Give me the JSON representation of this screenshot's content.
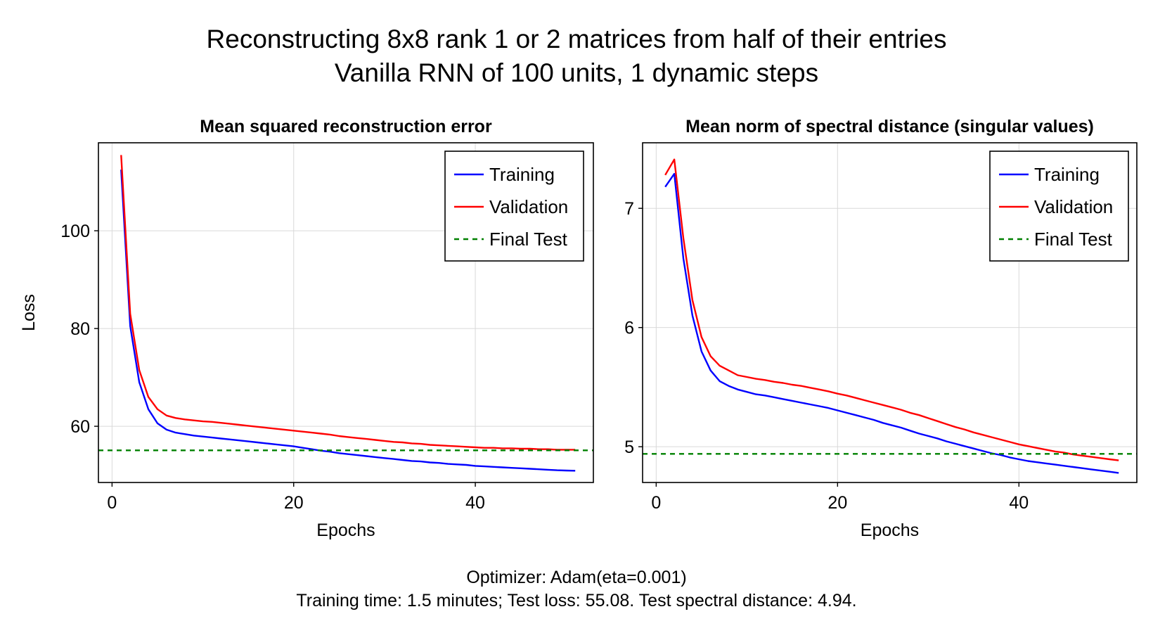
{
  "title_line1": "Reconstructing 8x8 rank 1 or 2 matrices from half of their entries",
  "title_line2": "Vanilla RNN of 100 units, 1 dynamic steps",
  "footer_line1": "Optimizer: Adam(eta=0.001)",
  "footer_line2": "Training time: 1.5 minutes; Test loss: 55.08. Test spectral distance: 4.94.",
  "colors": {
    "training": "#0000ff",
    "validation": "#ff0000",
    "final_test": "#008000",
    "grid": "#d9d9d9"
  },
  "chart_data": [
    {
      "type": "line",
      "title": "Mean squared reconstruction error",
      "xlabel": "Epochs",
      "ylabel": "Loss",
      "xlim": [
        -1.5,
        53
      ],
      "ylim": [
        48.5,
        118
      ],
      "xticks": [
        0,
        20,
        40
      ],
      "yticks": [
        60,
        80,
        100
      ],
      "grid": true,
      "legend_position": "top-right",
      "series": [
        {
          "name": "Training",
          "style": "solid",
          "color": "#0000ff",
          "x": [
            1,
            2,
            3,
            4,
            5,
            6,
            7,
            8,
            9,
            10,
            11,
            12,
            13,
            14,
            15,
            16,
            17,
            18,
            19,
            20,
            21,
            22,
            23,
            24,
            25,
            26,
            27,
            28,
            29,
            30,
            31,
            32,
            33,
            34,
            35,
            36,
            37,
            38,
            39,
            40,
            41,
            42,
            43,
            44,
            45,
            46,
            47,
            48,
            49,
            50,
            51
          ],
          "y": [
            112.5,
            80.5,
            69.0,
            63.5,
            60.6,
            59.3,
            58.7,
            58.4,
            58.1,
            57.9,
            57.7,
            57.5,
            57.3,
            57.1,
            56.9,
            56.7,
            56.5,
            56.3,
            56.1,
            55.9,
            55.6,
            55.3,
            55.0,
            54.8,
            54.5,
            54.3,
            54.1,
            53.9,
            53.7,
            53.5,
            53.3,
            53.1,
            52.9,
            52.8,
            52.6,
            52.5,
            52.3,
            52.2,
            52.1,
            51.9,
            51.8,
            51.7,
            51.6,
            51.5,
            51.4,
            51.3,
            51.2,
            51.1,
            51.0,
            50.95,
            50.9
          ]
        },
        {
          "name": "Validation",
          "style": "solid",
          "color": "#ff0000",
          "x": [
            1,
            2,
            3,
            4,
            5,
            6,
            7,
            8,
            9,
            10,
            11,
            12,
            13,
            14,
            15,
            16,
            17,
            18,
            19,
            20,
            21,
            22,
            23,
            24,
            25,
            26,
            27,
            28,
            29,
            30,
            31,
            32,
            33,
            34,
            35,
            36,
            37,
            38,
            39,
            40,
            41,
            42,
            43,
            44,
            45,
            46,
            47,
            48,
            49,
            50,
            51
          ],
          "y": [
            115.5,
            83.0,
            71.5,
            66.0,
            63.5,
            62.2,
            61.7,
            61.4,
            61.2,
            61.0,
            60.9,
            60.7,
            60.5,
            60.3,
            60.1,
            59.9,
            59.7,
            59.5,
            59.3,
            59.1,
            58.9,
            58.7,
            58.5,
            58.3,
            58.0,
            57.8,
            57.6,
            57.4,
            57.2,
            57.0,
            56.8,
            56.7,
            56.5,
            56.4,
            56.2,
            56.1,
            56.0,
            55.9,
            55.8,
            55.7,
            55.6,
            55.6,
            55.5,
            55.5,
            55.4,
            55.4,
            55.3,
            55.3,
            55.2,
            55.2,
            55.2
          ]
        },
        {
          "name": "Final Test",
          "style": "dashed",
          "color": "#008000",
          "hline": 55.08
        }
      ]
    },
    {
      "type": "line",
      "title": "Mean norm of spectral distance (singular values)",
      "xlabel": "Epochs",
      "ylabel": "",
      "xlim": [
        -1.5,
        53
      ],
      "ylim": [
        4.7,
        7.55
      ],
      "xticks": [
        0,
        20,
        40
      ],
      "yticks": [
        5,
        6,
        7
      ],
      "grid": true,
      "legend_position": "top-right",
      "series": [
        {
          "name": "Training",
          "style": "solid",
          "color": "#0000ff",
          "x": [
            1,
            2,
            3,
            4,
            5,
            6,
            7,
            8,
            9,
            10,
            11,
            12,
            13,
            14,
            15,
            16,
            17,
            18,
            19,
            20,
            21,
            22,
            23,
            24,
            25,
            26,
            27,
            28,
            29,
            30,
            31,
            32,
            33,
            34,
            35,
            36,
            37,
            38,
            39,
            40,
            41,
            42,
            43,
            44,
            45,
            46,
            47,
            48,
            49,
            50,
            51
          ],
          "y": [
            7.18,
            7.29,
            6.58,
            6.1,
            5.8,
            5.64,
            5.55,
            5.51,
            5.48,
            5.46,
            5.44,
            5.43,
            5.415,
            5.4,
            5.385,
            5.37,
            5.355,
            5.34,
            5.325,
            5.305,
            5.285,
            5.265,
            5.245,
            5.225,
            5.2,
            5.18,
            5.16,
            5.135,
            5.11,
            5.09,
            5.07,
            5.045,
            5.025,
            5.005,
            4.985,
            4.965,
            4.945,
            4.93,
            4.91,
            4.895,
            4.88,
            4.87,
            4.86,
            4.85,
            4.84,
            4.83,
            4.82,
            4.81,
            4.8,
            4.79,
            4.78
          ]
        },
        {
          "name": "Validation",
          "style": "solid",
          "color": "#ff0000",
          "x": [
            1,
            2,
            3,
            4,
            5,
            6,
            7,
            8,
            9,
            10,
            11,
            12,
            13,
            14,
            15,
            16,
            17,
            18,
            19,
            20,
            21,
            22,
            23,
            24,
            25,
            26,
            27,
            28,
            29,
            30,
            31,
            32,
            33,
            34,
            35,
            36,
            37,
            38,
            39,
            40,
            41,
            42,
            43,
            44,
            45,
            46,
            47,
            48,
            49,
            50,
            51
          ],
          "y": [
            7.28,
            7.41,
            6.75,
            6.23,
            5.92,
            5.76,
            5.68,
            5.64,
            5.6,
            5.585,
            5.57,
            5.56,
            5.545,
            5.535,
            5.52,
            5.51,
            5.495,
            5.48,
            5.465,
            5.445,
            5.43,
            5.41,
            5.39,
            5.37,
            5.35,
            5.33,
            5.31,
            5.285,
            5.265,
            5.24,
            5.215,
            5.19,
            5.165,
            5.145,
            5.12,
            5.1,
            5.08,
            5.06,
            5.04,
            5.02,
            5.005,
            4.99,
            4.975,
            4.96,
            4.95,
            4.935,
            4.925,
            4.915,
            4.905,
            4.895,
            4.885
          ]
        },
        {
          "name": "Final Test",
          "style": "dashed",
          "color": "#008000",
          "hline": 4.94
        }
      ]
    }
  ]
}
